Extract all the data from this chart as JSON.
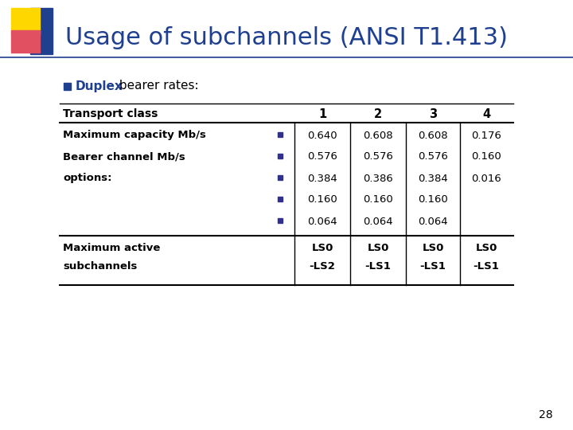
{
  "title": "Usage of subchannels (ANSI T1.413)",
  "title_color": "#1F3F8F",
  "title_fontsize": 22,
  "bullet_bold": "Duplex",
  "bullet_rest": " bearer rates:",
  "bullet_color": "#1F3F8F",
  "bullet_rest_color": "#000000",
  "table_header": [
    "Transport class",
    "1",
    "2",
    "3",
    "4"
  ],
  "row1_label": [
    "Maximum capacity Mb/s",
    "Bearer channel Mb/s",
    "options:"
  ],
  "row1_data": [
    [
      "0.640",
      "0.608",
      "0.608",
      "0.176"
    ],
    [
      "0.576",
      "0.576",
      "0.576",
      "0.160"
    ],
    [
      "0.384",
      "0.386",
      "0.384",
      "0.016"
    ],
    [
      "0.160",
      "0.160",
      "0.160",
      ""
    ],
    [
      "0.064",
      "0.064",
      "0.064",
      ""
    ]
  ],
  "row2_label": [
    "Maximum active",
    "subchannels"
  ],
  "row2_data": [
    "LS0\n-LS2",
    "LS0\n-LS1",
    "LS0\n-LS1",
    "LS0\n-LS1"
  ],
  "bg_color": "#FFFFFF",
  "page_number": "28",
  "title_font": "DejaVu Sans",
  "body_font": "DejaVu Sans",
  "bullet_square_color": "#1F3F8F",
  "small_square_color": "#303090"
}
